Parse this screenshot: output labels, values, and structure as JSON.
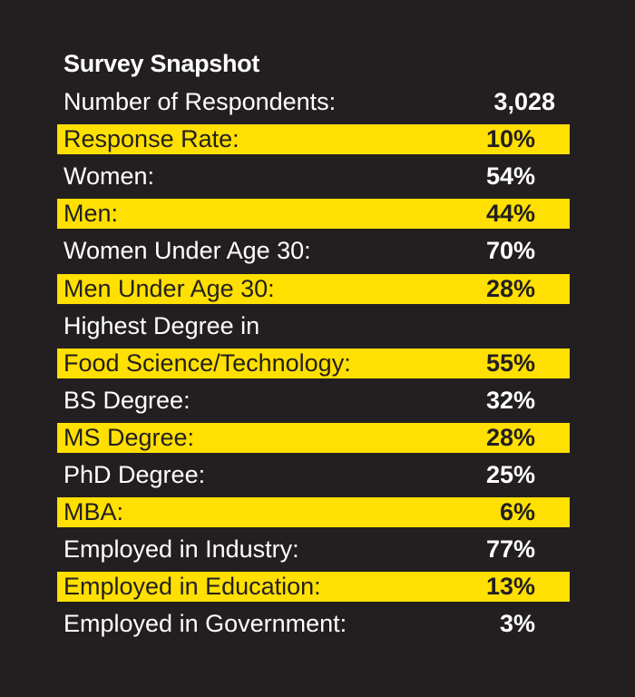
{
  "title": "Survey Snapshot",
  "highlight_color": "#ffe000",
  "background_color": "#231f20",
  "rows": [
    {
      "label": "Number of Respondents:",
      "value": "3,028",
      "highlight": false
    },
    {
      "label": "Response Rate:",
      "value": "10%",
      "highlight": true
    },
    {
      "label": "Women:",
      "value": "54%",
      "highlight": false
    },
    {
      "label": "Men:",
      "value": "44%",
      "highlight": true
    },
    {
      "label": "Women Under Age 30:",
      "value": "70%",
      "highlight": false
    },
    {
      "label": "Men Under Age 30:",
      "value": "28%",
      "highlight": true
    },
    {
      "label": "Highest Degree in",
      "value": "",
      "highlight": false
    },
    {
      "label": "Food Science/Technology:",
      "value": "55%",
      "highlight": true
    },
    {
      "label": "BS Degree:",
      "value": "32%",
      "highlight": false
    },
    {
      "label": "MS Degree:",
      "value": "28%",
      "highlight": true
    },
    {
      "label": "PhD Degree:",
      "value": "25%",
      "highlight": false
    },
    {
      "label": "MBA:",
      "value": "6%",
      "highlight": true
    },
    {
      "label": "Employed in Industry:",
      "value": "77%",
      "highlight": false
    },
    {
      "label": "Employed in Education:",
      "value": "13%",
      "highlight": true
    },
    {
      "label": "Employed in Government:",
      "value": "3%",
      "highlight": false
    }
  ]
}
